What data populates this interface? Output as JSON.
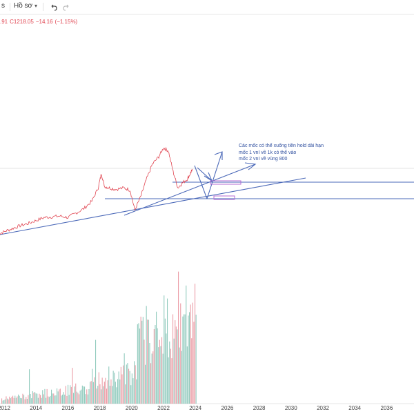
{
  "toolbar": {
    "ticker_fragment": "s",
    "profile_label": "Hồ sơ",
    "undo_icon": "undo-icon",
    "redo_icon": "redo-icon"
  },
  "legend": {
    "prev_fragment": ".91",
    "close_label": "C",
    "close_value": "1218.05",
    "change": "−14.16",
    "change_pct": "(−1.15%)",
    "color": "#e0434f"
  },
  "annotation": {
    "line1": "Các mốc có thể xuống tiền hold dài hạn",
    "line2": "mốc 1 vnI về 1k có thể vào",
    "line3": "mốc 2 vnI về vùng 800",
    "color": "#2f4f9f"
  },
  "colors": {
    "price": "#e0434f",
    "trendline": "#4a68b8",
    "volume_up": "#7fc2b3",
    "volume_down": "#e88c97",
    "highlight": "#b46bd3"
  },
  "chart_data": {
    "type": "line",
    "x_ticks": [
      "2012",
      "2014",
      "2016",
      "2018",
      "2020",
      "2022",
      "2024",
      "2026",
      "2028",
      "2030",
      "2032",
      "2034",
      "2036"
    ],
    "series": [
      {
        "values": [
          [
            2011.6,
            350
          ],
          [
            2012.0,
            390
          ],
          [
            2012.5,
            430
          ],
          [
            2013.0,
            470
          ],
          [
            2013.5,
            500
          ],
          [
            2014.0,
            540
          ],
          [
            2014.5,
            580
          ],
          [
            2015.0,
            590
          ],
          [
            2015.5,
            600
          ],
          [
            2016.0,
            580
          ],
          [
            2016.5,
            640
          ],
          [
            2017.0,
            700
          ],
          [
            2017.5,
            800
          ],
          [
            2017.9,
            980
          ],
          [
            2018.1,
            1170
          ],
          [
            2018.3,
            1000
          ],
          [
            2018.6,
            980
          ],
          [
            2019.0,
            960
          ],
          [
            2019.5,
            980
          ],
          [
            2019.9,
            950
          ],
          [
            2020.2,
            680
          ],
          [
            2020.6,
            880
          ],
          [
            2020.9,
            1080
          ],
          [
            2021.3,
            1300
          ],
          [
            2021.7,
            1400
          ],
          [
            2022.0,
            1520
          ],
          [
            2022.3,
            1480
          ],
          [
            2022.6,
            1200
          ],
          [
            2022.9,
            980
          ],
          [
            2023.2,
            1050
          ],
          [
            2023.5,
            1100
          ],
          [
            2023.7,
            1180
          ],
          [
            2023.8,
            1218
          ]
        ]
      }
    ]
  }
}
